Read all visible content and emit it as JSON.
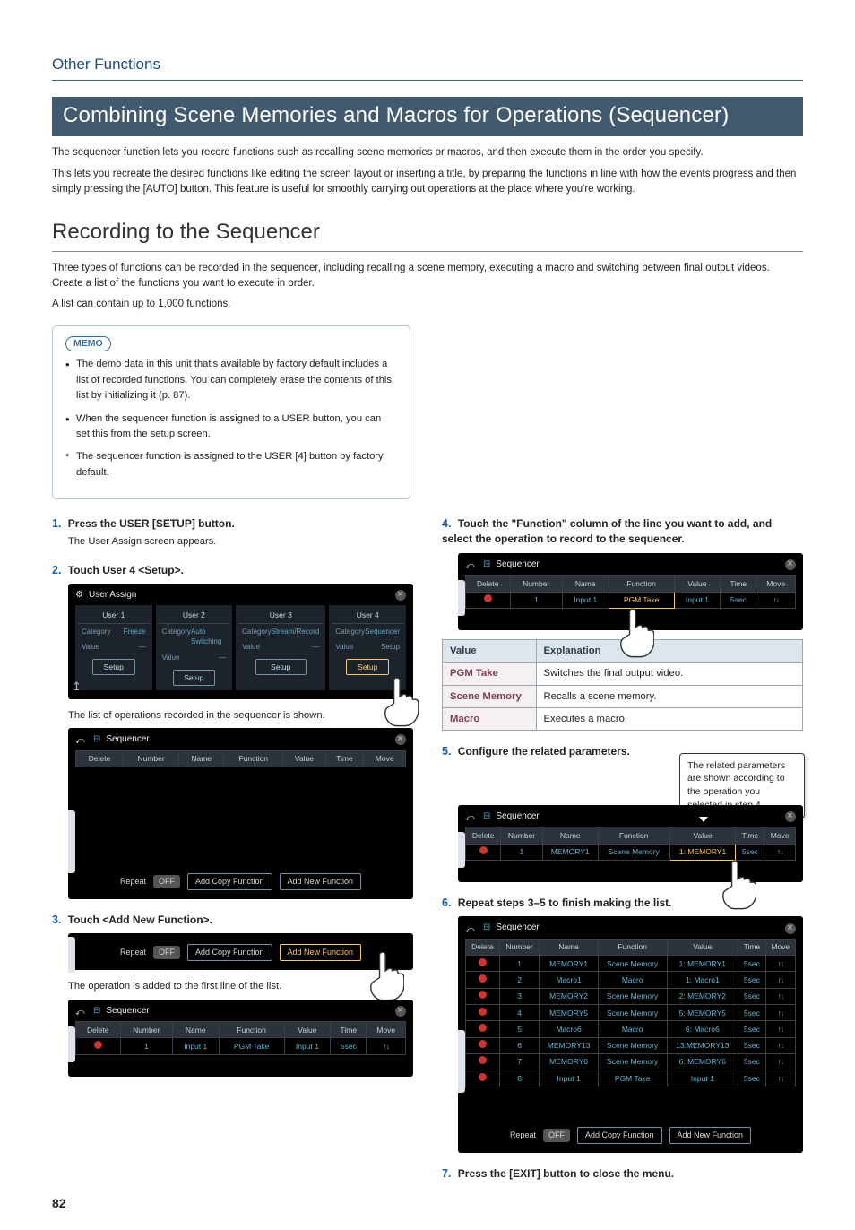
{
  "section_heading": "Other Functions",
  "title": "Combining Scene Memories and Macros for Operations (Sequencer)",
  "intro_p1": "The sequencer function lets you record functions such as recalling scene memories or macros, and then execute them in the order you specify.",
  "intro_p2": "This lets you recreate the desired functions like editing the screen layout or inserting a title, by preparing the functions in line with how the events progress and then simply pressing the [AUTO] button. This feature is useful for smoothly carrying out operations at the place where you're working.",
  "subtitle": "Recording to the Sequencer",
  "para_after_sub_1": "Three types of functions can be recorded in the sequencer, including recalling a scene memory, executing a macro and switching between final output videos. Create a list of the functions you want to execute in order.",
  "para_after_sub_2": "A list can contain up to 1,000 functions.",
  "memo": {
    "label": "MEMO",
    "items": [
      "The demo data in this unit that's available by factory default includes a list of recorded functions. You can completely erase the contents of this list by initializing it (p. 87).",
      "When the sequencer function is assigned to a USER button, you can set this from the setup screen.",
      "The sequencer function is assigned to the USER [4] button by factory default."
    ]
  },
  "steps": {
    "s1": {
      "num": "1.",
      "text": "Press the USER [SETUP] button.",
      "sub": "The User Assign screen appears."
    },
    "s2": {
      "num": "2.",
      "text": "Touch User 4 <Setup>.",
      "after_shot": "The list of operations recorded in the sequencer is shown."
    },
    "s3": {
      "num": "3.",
      "text": "Touch <Add New Function>.",
      "after_shot": "The operation is added to the first line of the list."
    },
    "s4": {
      "num": "4.",
      "text": "Touch the \"Function\" column of the line you want to add, and select the operation to record to the sequencer."
    },
    "s5": {
      "num": "5.",
      "text": "Configure the related parameters.",
      "callout": "The related parameters are shown according to the operation you selected in step 4."
    },
    "s6": {
      "num": "6.",
      "text": "Repeat steps 3–5 to finish making the list."
    },
    "s7": {
      "num": "7.",
      "text": "Press the [EXIT] button to close the menu."
    }
  },
  "ui": {
    "user_assign_title": "User Assign",
    "sequencer_title": "Sequencer",
    "user_cols": [
      "User 1",
      "User 2",
      "User 3",
      "User 4"
    ],
    "ua_categories": [
      "Freeze",
      "Auto Switching",
      "Stream/Record",
      "Sequencer"
    ],
    "ua_setup": "Setup",
    "category_label": "Category",
    "value_label": "Value",
    "seq_headers": [
      "Delete",
      "Number",
      "Name",
      "Function",
      "Value",
      "Time",
      "Move"
    ],
    "repeat": "Repeat",
    "off": "OFF",
    "add_copy": "Add Copy Function",
    "add_new": "Add New Function",
    "row_single": {
      "num": "1",
      "name": "Input 1",
      "func": "PGM Take",
      "value": "Input 1",
      "time": "5sec"
    },
    "row_s5": {
      "num": "1",
      "name": "MEMORY1",
      "func": "Scene Memory",
      "value": "1: MEMORY1",
      "time": "5sec"
    },
    "rows_s6": [
      {
        "num": "1",
        "name": "MEMORY1",
        "func": "Scene Memory",
        "value": "1: MEMORY1",
        "time": "5sec"
      },
      {
        "num": "2",
        "name": "Macro1",
        "func": "Macro",
        "value": "1: Macro1",
        "time": "5sec"
      },
      {
        "num": "3",
        "name": "MEMORY2",
        "func": "Scene Memory",
        "value": "2: MEMORY2",
        "time": "5sec"
      },
      {
        "num": "4",
        "name": "MEMORY5",
        "func": "Scene Memory",
        "value": "5: MEMORY5",
        "time": "5sec"
      },
      {
        "num": "5",
        "name": "Macro6",
        "func": "Macro",
        "value": "6: Macro6",
        "time": "5sec"
      },
      {
        "num": "6",
        "name": "MEMORY13",
        "func": "Scene Memory",
        "value": "13:MEMORY13",
        "time": "5sec"
      },
      {
        "num": "7",
        "name": "MEMORY6",
        "func": "Scene Memory",
        "value": "6: MEMORY6",
        "time": "5sec"
      },
      {
        "num": "8",
        "name": "Input 1",
        "func": "PGM Take",
        "value": "Input 1",
        "time": "5sec"
      }
    ]
  },
  "value_table": {
    "head_value": "Value",
    "head_explanation": "Explanation",
    "rows": [
      {
        "v": "PGM Take",
        "e": "Switches the final output video."
      },
      {
        "v": "Scene Memory",
        "e": "Recalls a scene memory."
      },
      {
        "v": "Macro",
        "e": "Executes a macro."
      }
    ]
  },
  "page_number": "82"
}
